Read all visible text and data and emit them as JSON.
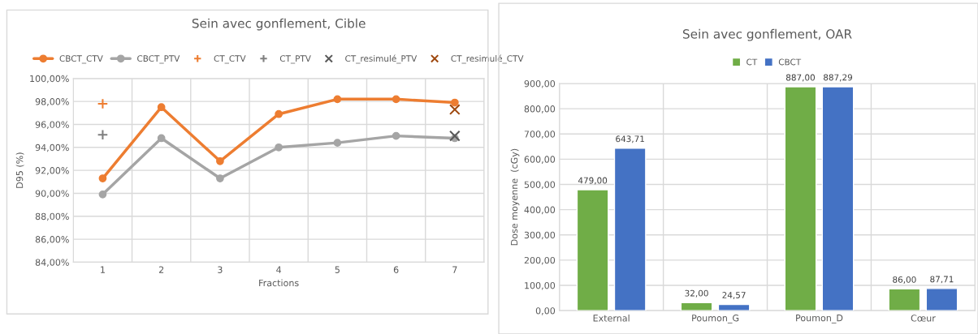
{
  "chart_data": [
    {
      "type": "line",
      "title": "Sein avec gonflement, Cible",
      "xlabel": "Fractions",
      "ylabel": "D95 (%)",
      "categories": [
        "1",
        "2",
        "3",
        "4",
        "5",
        "6",
        "7"
      ],
      "series": [
        {
          "name": "CBCT_CTV",
          "color": "#ed7d31",
          "marker": "circle",
          "values": [
            91.3,
            97.5,
            92.8,
            96.9,
            98.2,
            98.2,
            97.9
          ]
        },
        {
          "name": "CBCT_PTV",
          "color": "#a5a5a5",
          "marker": "circle",
          "values": [
            89.9,
            94.8,
            91.3,
            94.0,
            94.4,
            95.0,
            94.8
          ]
        },
        {
          "name": "CT_CTV",
          "type": "scatter",
          "color": "#ed7d31",
          "marker": "plus",
          "values": [
            97.8,
            null,
            null,
            null,
            null,
            null,
            null
          ]
        },
        {
          "name": "CT_PTV",
          "type": "scatter",
          "color": "#7f7f7f",
          "marker": "plus",
          "values": [
            95.1,
            null,
            null,
            null,
            null,
            null,
            null
          ]
        },
        {
          "name": "CT_resimulé_PTV",
          "type": "scatter",
          "color": "#595959",
          "marker": "cross",
          "values": [
            null,
            null,
            null,
            null,
            null,
            null,
            95.0
          ]
        },
        {
          "name": "CT_resimulé_CTV",
          "type": "scatter",
          "color": "#9e480e",
          "marker": "cross",
          "values": [
            null,
            null,
            null,
            null,
            null,
            null,
            97.3
          ]
        }
      ],
      "ylim": [
        84,
        100
      ],
      "yticks": [
        {
          "value": 84,
          "label": "84,00%"
        },
        {
          "value": 86,
          "label": "86,00%"
        },
        {
          "value": 88,
          "label": "88,00%"
        },
        {
          "value": 90,
          "label": "90,00%"
        },
        {
          "value": 92,
          "label": "92,00%"
        },
        {
          "value": 94,
          "label": "94,00%"
        },
        {
          "value": 96,
          "label": "96,00%"
        },
        {
          "value": 98,
          "label": "98,00%"
        },
        {
          "value": 100,
          "label": "100,00%"
        }
      ],
      "grid": true,
      "legend": "top"
    },
    {
      "type": "bar",
      "title": "Sein avec gonflement, OAR",
      "ylabel": "Dose moyenne  (cGy)",
      "categories": [
        "External",
        "Poumon_G",
        "Poumon_D",
        "Cœur"
      ],
      "series": [
        {
          "name": "CT",
          "color": "#70ad47",
          "values": [
            479.0,
            32.0,
            887.0,
            86.0
          ],
          "value_labels": [
            "479,00",
            "32,00",
            "887,00",
            "86,00"
          ]
        },
        {
          "name": "CBCT",
          "color": "#4472c4",
          "values": [
            643.71,
            24.57,
            887.29,
            87.71
          ],
          "value_labels": [
            "643,71",
            "24,57",
            "887,29",
            "87,71"
          ]
        }
      ],
      "ylim": [
        0,
        900
      ],
      "yticks": [
        {
          "value": 0,
          "label": "0,00"
        },
        {
          "value": 100,
          "label": "100,00"
        },
        {
          "value": 200,
          "label": "200,00"
        },
        {
          "value": 300,
          "label": "300,00"
        },
        {
          "value": 400,
          "label": "400,00"
        },
        {
          "value": 500,
          "label": "500,00"
        },
        {
          "value": 600,
          "label": "600,00"
        },
        {
          "value": 700,
          "label": "700,00"
        },
        {
          "value": 800,
          "label": "800,00"
        },
        {
          "value": 900,
          "label": "900,00"
        }
      ],
      "grid": true,
      "legend": "top"
    }
  ]
}
